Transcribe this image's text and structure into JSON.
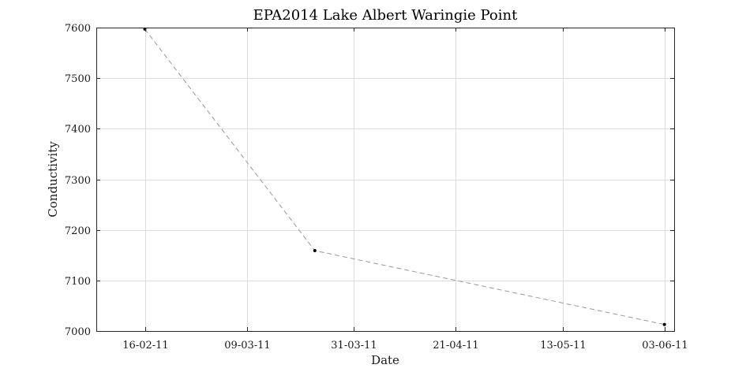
{
  "chart_data": {
    "type": "line",
    "title": "EPA2014 Lake Albert Waringie Point",
    "xlabel": "Date",
    "ylabel": "Conductivity",
    "x_axis_type": "date",
    "x_tick_labels": [
      "16-02-11",
      "09-03-11",
      "31-03-11",
      "21-04-11",
      "13-05-11",
      "03-06-11"
    ],
    "x_tick_dates": [
      "2011-02-16",
      "2011-03-09",
      "2011-03-31",
      "2011-04-21",
      "2011-05-13",
      "2011-06-03"
    ],
    "xlim": [
      "2011-02-06",
      "2011-06-05"
    ],
    "y_ticks": [
      7000,
      7100,
      7200,
      7300,
      7400,
      7500,
      7600
    ],
    "ylim": [
      7000,
      7600
    ],
    "grid": true,
    "legend": "none",
    "series": [
      {
        "x": [
          "2011-02-16",
          "2011-03-23",
          "2011-06-03"
        ],
        "y": [
          7597,
          7159,
          7013
        ],
        "line_style": "dashed",
        "marker": "dot",
        "line_color": "#999999",
        "marker_color": "#000000"
      }
    ]
  }
}
